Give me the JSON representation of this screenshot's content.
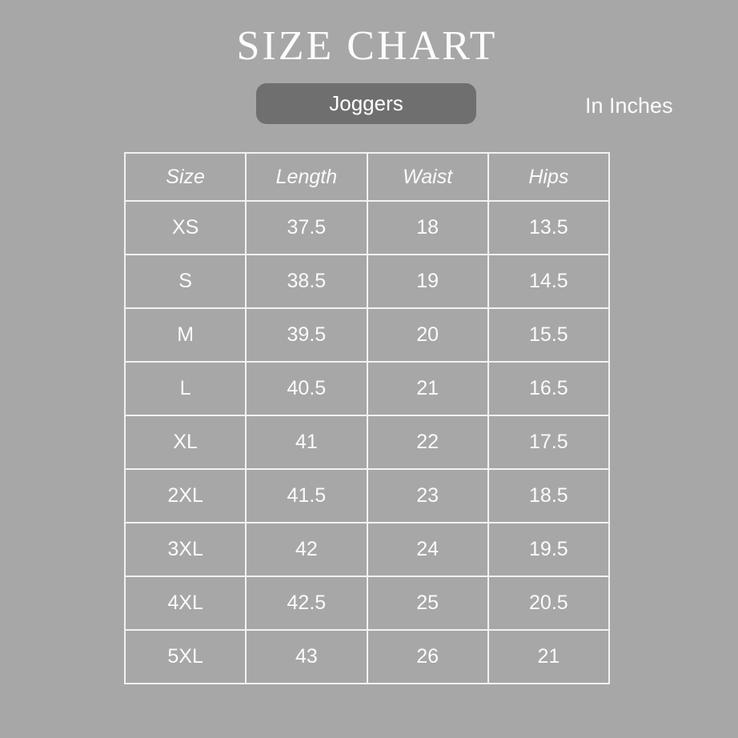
{
  "page": {
    "title": "SIZE CHART",
    "category_label": "Joggers",
    "unit_label": "In Inches"
  },
  "colors": {
    "background": "#a7a7a7",
    "pill_background": "#6f6f6f",
    "text": "#fbfbfb",
    "grid_border": "#f2f2f2"
  },
  "chart_data": {
    "type": "table",
    "title": "SIZE CHART",
    "subtitle": "Joggers",
    "units": "In Inches",
    "columns": [
      "Size",
      "Length",
      "Waist",
      "Hips"
    ],
    "rows": [
      [
        "XS",
        "37.5",
        "18",
        "13.5"
      ],
      [
        "S",
        "38.5",
        "19",
        "14.5"
      ],
      [
        "M",
        "39.5",
        "20",
        "15.5"
      ],
      [
        "L",
        "40.5",
        "21",
        "16.5"
      ],
      [
        "XL",
        "41",
        "22",
        "17.5"
      ],
      [
        "2XL",
        "41.5",
        "23",
        "18.5"
      ],
      [
        "3XL",
        "42",
        "24",
        "19.5"
      ],
      [
        "4XL",
        "42.5",
        "25",
        "20.5"
      ],
      [
        "5XL",
        "43",
        "26",
        "21"
      ]
    ]
  }
}
